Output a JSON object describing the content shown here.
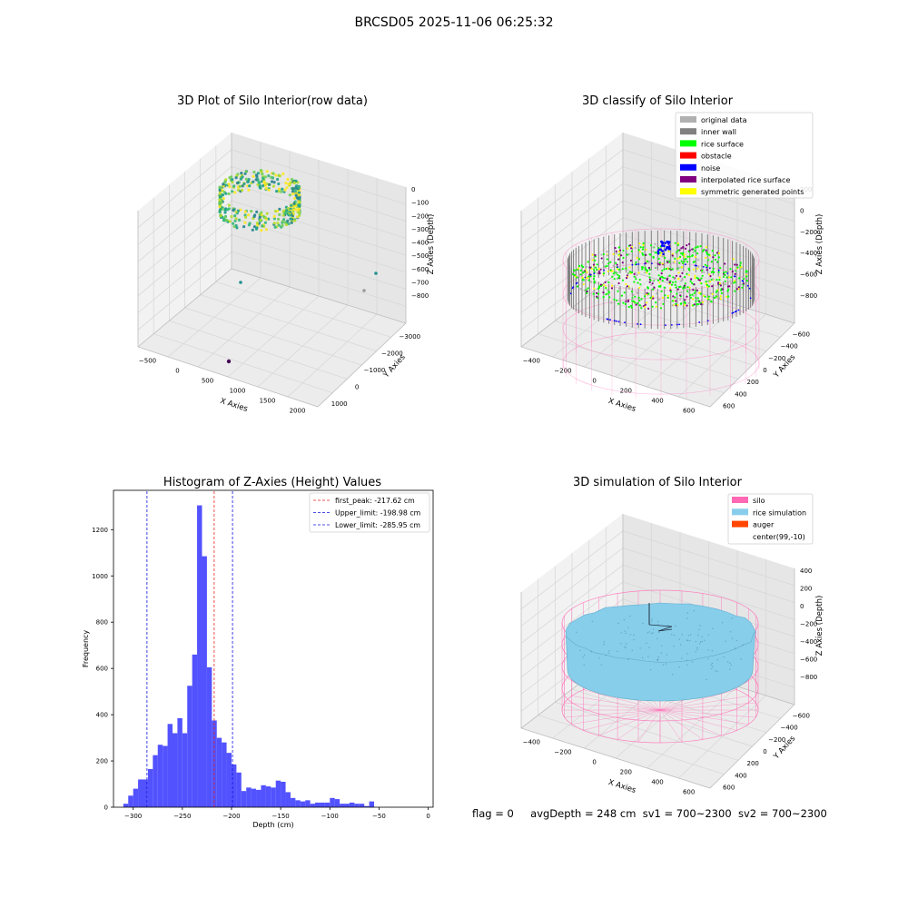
{
  "suptitle": "BRCSD05 2025-11-06 06:25:32",
  "footer": {
    "flag": "flag = 0",
    "avg_depth": "avgDepth = 248 cm",
    "sv1": "sv1 = 700~2300",
    "sv2": "sv2 = 700~2300"
  },
  "colors": {
    "hist_bar": "#4f4fff",
    "first_peak": "#e8231f",
    "limits": "#1212e0",
    "silo": "#ff69b4",
    "rice_simulation": "#87ceeb",
    "auger": "#ff4500",
    "original_data": "#b0b0b0",
    "inner_wall": "#808080",
    "rice_surface": "#00ff00",
    "obstacle": "#ff0000",
    "noise": "#0000ff",
    "interpolated_rice_surface": "#800080",
    "symmetric_generated_points": "#ffff00"
  },
  "chart_data": [
    {
      "type": "scatter",
      "kind": "3d-scatter",
      "title": "3D Plot of Silo Interior(row data)",
      "xlabel": "X Axies",
      "ylabel": "Y Axies",
      "zlabel": "Z Axies (Depth)",
      "x_ticks": [
        "−500",
        "0",
        "500",
        "1000",
        "1500",
        "2000"
      ],
      "y_ticks": [
        "1000",
        "0",
        "−1000",
        "−2000",
        "−3000"
      ],
      "z_ticks": [
        "0",
        "−100",
        "−200",
        "−300",
        "−400",
        "−500",
        "−600",
        "−700",
        "−800"
      ],
      "xlim": [
        -600,
        2100
      ],
      "ylim": [
        -3200,
        1300
      ],
      "zlim": [
        -850,
        50
      ],
      "grid": true
    },
    {
      "type": "scatter",
      "kind": "3d-scatter",
      "title": "3D classify of Silo Interior",
      "xlabel": "X Axies",
      "ylabel": "Y Axies",
      "zlabel": "Z Axies (Depth)",
      "x_ticks": [
        "−400",
        "−200",
        "0",
        "200",
        "400",
        "600"
      ],
      "y_ticks": [
        "600",
        "400",
        "200",
        "0",
        "−200",
        "−400",
        "−600"
      ],
      "z_ticks": [
        "200",
        "0",
        "−200",
        "−400",
        "−600",
        "−800"
      ],
      "legend": [
        "original data",
        "inner wall",
        "rice surface",
        "obstacle",
        "noise",
        "interpolated rice surface",
        "symmetric generated points"
      ],
      "legend_position": "top-right",
      "grid": true
    },
    {
      "type": "bar",
      "kind": "histogram",
      "title": "Histogram of Z-Axies (Height) Values",
      "xlabel": "Depth (cm)",
      "ylabel": "Frequency",
      "bin_width": 5,
      "bin_start": -310,
      "values": [
        15,
        50,
        80,
        120,
        120,
        165,
        225,
        270,
        265,
        360,
        320,
        385,
        320,
        525,
        660,
        1305,
        1085,
        605,
        375,
        300,
        280,
        235,
        185,
        150,
        70,
        85,
        80,
        75,
        95,
        90,
        85,
        115,
        110,
        65,
        40,
        30,
        25,
        30,
        15,
        20,
        20,
        20,
        40,
        35,
        15,
        15,
        20,
        15,
        15,
        5,
        25
      ],
      "xlim": [
        -320,
        5
      ],
      "ylim": [
        0,
        1370
      ],
      "x_ticks": [
        -300,
        -250,
        -200,
        -150,
        -100,
        -50,
        0
      ],
      "x_tick_labels": [
        "−300",
        "−250",
        "−200",
        "−150",
        "−100",
        "−50",
        "0"
      ],
      "y_ticks": [
        0,
        200,
        400,
        600,
        800,
        1000,
        1200
      ],
      "lines": [
        {
          "label": "first_peak: -217.62 cm",
          "x": -217.62,
          "style": "dashed",
          "color": "#e8231f"
        },
        {
          "label": "Upper_limit: -198.98 cm",
          "x": -198.98,
          "style": "dashed",
          "color": "#1212e0"
        },
        {
          "label": "Lower_limit: -285.95 cm",
          "x": -285.95,
          "style": "dashed",
          "color": "#1212e0"
        }
      ],
      "legend_position": "top-right"
    },
    {
      "type": "scatter",
      "kind": "3d-surface",
      "title": "3D simulation of Silo Interior",
      "xlabel": "X Axies",
      "ylabel": "Y Axies",
      "zlabel": "Z Axies (Depth)",
      "x_ticks": [
        "−400",
        "−200",
        "0",
        "200",
        "400",
        "600"
      ],
      "y_ticks": [
        "600",
        "400",
        "200",
        "0",
        "−200",
        "−400",
        "−600"
      ],
      "z_ticks": [
        "400",
        "200",
        "0",
        "−200",
        "−400",
        "−600",
        "−800"
      ],
      "legend": [
        "silo",
        "rice simulation",
        "auger",
        "center(99,-10)"
      ],
      "legend_position": "top-right",
      "grid": true
    }
  ]
}
